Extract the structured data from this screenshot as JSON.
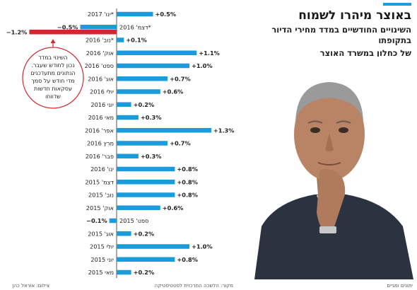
{
  "header": {
    "title": "באוצר מיהרו לשמוח",
    "subtitle_line1": "השינויים החודשיים במדד מחירי הדיור בתקופתו",
    "subtitle_line2": "של כחלון במשרד האוצר",
    "accent_color": "#1a9bdc"
  },
  "annotation": {
    "line1": "השינוי במדד",
    "line2": "נכון לחודש שעבר.",
    "line3": "הנתונים מתעדכנים",
    "line4": "מדי חודש על סמך",
    "line5": "עסקאות חדשות",
    "line6": "שדווחו"
  },
  "footer": {
    "agency": "יתונים ומגיים",
    "source": "מקור: הלשכה המרכזית לסטטיסטיקה",
    "illustration": "צילום: אוראל כהן"
  },
  "colors": {
    "positive": "#1a9bdc",
    "negative_highlight": "#d22630",
    "negative": "#1a9bdc",
    "axis": "#555555",
    "circle": "#d22630",
    "suit": "#2b3340",
    "skin": "#b98366"
  },
  "chart_data": {
    "type": "bar",
    "orientation": "horizontal",
    "title": "באוצר מיהרו לשמוח",
    "categories": [
      "ינו' 2017*",
      "דצמ' 2016*",
      "נוב' 2016*",
      "אוק' 2016",
      "ספט' 2016",
      "אוג' 2016",
      "יולי 2016",
      "יוני 2016",
      "מאי 2016",
      "אפר' 2016",
      "מרץ 2016",
      "פבר' 2016",
      "ינו' 2016",
      "דצמ' 2015",
      "נוב' 2015",
      "אוק' 2015",
      "ספט' 2015",
      "אוג' 2015",
      "יולי 2015",
      "יוני 2015",
      "מאי 2015"
    ],
    "values": [
      0.5,
      -0.5,
      0.1,
      1.1,
      1.0,
      0.7,
      0.6,
      0.2,
      0.3,
      1.3,
      0.7,
      0.3,
      0.8,
      0.8,
      0.8,
      0.6,
      -0.1,
      0.2,
      1.0,
      0.8,
      0.2
    ],
    "value_labels": [
      "+0.5%",
      "−0.5%",
      "+0.1%",
      "+1.1%",
      "+1.0%",
      "+0.7%",
      "+0.6%",
      "+0.2%",
      "+0.3%",
      "+1.3%",
      "+0.7%",
      "+0.3%",
      "+0.8%",
      "+0.8%",
      "+0.8%",
      "+0.6%",
      "−0.1%",
      "+0.2%",
      "+1.0%",
      "+0.8%",
      "+0.2%"
    ],
    "extra_bar": {
      "label": "−1.2%",
      "value": -1.2,
      "row": 1
    },
    "xlim": [
      -1.5,
      1.5
    ]
  }
}
